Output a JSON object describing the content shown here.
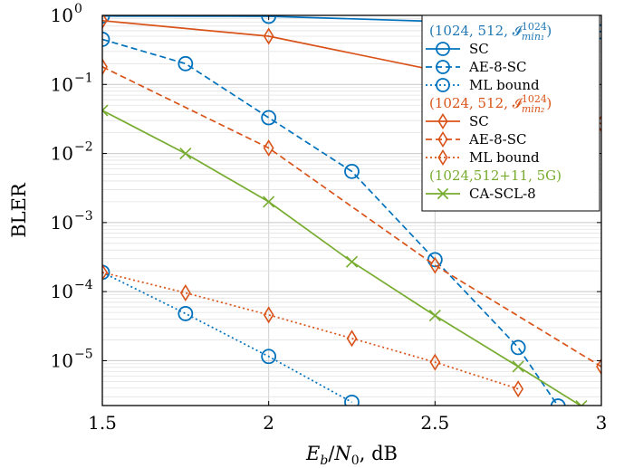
{
  "chart_data": {
    "type": "line",
    "xlabel": "E_b/N_0, dB",
    "ylabel": "BLER",
    "xlim": [
      1.5,
      3
    ],
    "ylim_log10": [
      -5.65,
      0
    ],
    "yscale": "log",
    "grid": true,
    "legend_position": "top-right",
    "x_ticks": [
      1.5,
      2,
      2.5,
      3
    ],
    "x_tick_labels": [
      "1.5",
      "2",
      "2.5",
      "3"
    ],
    "y_ticks": [
      1,
      0.1,
      0.01,
      0.001,
      0.0001,
      1e-05
    ],
    "y_tick_labels": [
      {
        "base": "10",
        "exp": "0"
      },
      {
        "base": "10",
        "exp": "−1"
      },
      {
        "base": "10",
        "exp": "−2"
      },
      {
        "base": "10",
        "exp": "−3"
      },
      {
        "base": "10",
        "exp": "−4"
      },
      {
        "base": "10",
        "exp": "−5"
      }
    ],
    "groups": [
      {
        "header": "(1024, 512, 𝓘",
        "header_sub": "min₁",
        "header_sup": "1024",
        "header_end": ")",
        "color": "#1f77b4"
      },
      {
        "header": "(1024, 512, 𝓘",
        "header_sub": "min₂",
        "header_sup": "1024",
        "header_end": ")",
        "color": "#d95319"
      },
      {
        "header": "(1024,512+11, 5G)",
        "color": "#77ac30"
      }
    ],
    "series": [
      {
        "name": "SC",
        "group": 0,
        "color": "#0072bd",
        "dash": "solid",
        "marker": "circle",
        "x": [
          1.5,
          2.0,
          2.5,
          3.0
        ],
        "y": [
          0.98,
          0.97,
          0.82,
          0.58
        ]
      },
      {
        "name": "AE-8-SC",
        "group": 0,
        "color": "#0072bd",
        "dash": "dashed",
        "marker": "circle",
        "x": [
          1.5,
          1.75,
          2.0,
          2.25,
          2.5,
          2.75,
          2.87
        ],
        "y": [
          0.45,
          0.2,
          0.033,
          0.0055,
          0.00029,
          1.55e-05,
          2.2e-06
        ]
      },
      {
        "name": "ML bound",
        "group": 0,
        "color": "#0072bd",
        "dash": "dotted",
        "marker": "circle",
        "x": [
          1.5,
          1.75,
          2.0,
          2.25
        ],
        "y": [
          0.00019,
          4.8e-05,
          1.15e-05,
          2.5e-06
        ]
      },
      {
        "name": "SC",
        "group": 1,
        "color": "#d95319",
        "dash": "solid",
        "marker": "diamond",
        "x": [
          1.5,
          2.0,
          2.5,
          3.0
        ],
        "y": [
          0.84,
          0.5,
          0.16,
          0.027
        ]
      },
      {
        "name": "AE-8-SC",
        "group": 1,
        "color": "#d95319",
        "dash": "dashed",
        "marker": "diamond",
        "x": [
          1.5,
          2.0,
          2.5,
          3.0
        ],
        "y": [
          0.18,
          0.012,
          0.00024,
          8.2e-06
        ]
      },
      {
        "name": "ML bound",
        "group": 1,
        "color": "#d95319",
        "dash": "dotted",
        "marker": "diamond",
        "x": [
          1.5,
          1.75,
          2.0,
          2.25,
          2.5,
          2.75
        ],
        "y": [
          0.00019,
          9.6e-05,
          4.6e-05,
          2.1e-05,
          9.5e-06,
          3.9e-06
        ]
      },
      {
        "name": "CA-SCL-8",
        "group": 2,
        "color": "#77ac30",
        "dash": "solid",
        "marker": "x",
        "x": [
          1.5,
          1.75,
          2.0,
          2.25,
          2.5,
          2.75,
          2.94
        ],
        "y": [
          0.042,
          0.01,
          0.002,
          0.00027,
          4.5e-05,
          8.2e-06,
          2.2e-06
        ]
      }
    ]
  }
}
